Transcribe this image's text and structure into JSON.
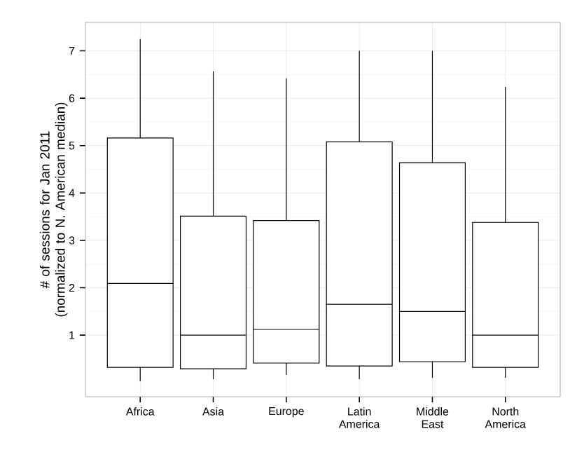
{
  "chart_data": {
    "type": "box",
    "ylabel": "# of sessions for Jan 2011 (normalized to N. American median)",
    "categories": [
      "Africa",
      "Asia",
      "Europe",
      "Latin America",
      "Middle East",
      "North America"
    ],
    "boxes": [
      {
        "low": 0.03,
        "q1": 0.32,
        "median": 2.09,
        "q3": 5.16,
        "high": 7.25
      },
      {
        "low": 0.07,
        "q1": 0.29,
        "median": 1.0,
        "q3": 3.51,
        "high": 6.57
      },
      {
        "low": 0.16,
        "q1": 0.41,
        "median": 1.12,
        "q3": 3.42,
        "high": 6.42
      },
      {
        "low": 0.07,
        "q1": 0.35,
        "median": 1.65,
        "q3": 5.08,
        "high": 7.0
      },
      {
        "low": 0.1,
        "q1": 0.44,
        "median": 1.5,
        "q3": 4.64,
        "high": 7.0
      },
      {
        "low": 0.1,
        "q1": 0.32,
        "median": 1.0,
        "q3": 3.38,
        "high": 6.24
      }
    ],
    "ylim": [
      -0.3,
      7.6
    ],
    "yticks": [
      1,
      2,
      3,
      4,
      5,
      6,
      7
    ],
    "grid": true
  }
}
